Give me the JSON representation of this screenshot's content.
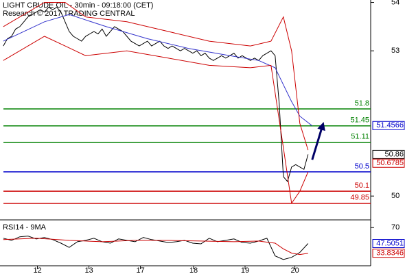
{
  "chart_data": [
    {
      "type": "line",
      "title": "LIGHT CRUDE OIL - 30min - 09:18:00 (CET)",
      "subtitle": "Research © 2017 TRADING CENTRAL",
      "xlim": [
        -0.8,
        89.2
      ],
      "xticks": [
        {
          "value": 8.3,
          "label": "12"
        },
        {
          "value": 20.8,
          "label": "13"
        },
        {
          "value": 33.3,
          "label": "17"
        },
        {
          "value": 46.2,
          "label": "18"
        },
        {
          "value": 58.7,
          "label": "19"
        },
        {
          "value": 70.8,
          "label": "20"
        }
      ],
      "ylim": [
        49.55,
        54.05
      ],
      "yticks": [
        50,
        53,
        54
      ],
      "series": [
        {
          "color": "#000000",
          "x": [
            0,
            1,
            2,
            3,
            4,
            5,
            6,
            7,
            8,
            9,
            10,
            11,
            12,
            13,
            14,
            15,
            16,
            17,
            18,
            19,
            20,
            21,
            22,
            23,
            24,
            25,
            26,
            27,
            28,
            29,
            30,
            31,
            32,
            33,
            34,
            35,
            36,
            37,
            38,
            39,
            40,
            41,
            42,
            43,
            44,
            45,
            46,
            47,
            48,
            49,
            50,
            51,
            52,
            53,
            54,
            55,
            56,
            57,
            58,
            59,
            60,
            61,
            62,
            63,
            64,
            65,
            66,
            67,
            68,
            69,
            70,
            71,
            72,
            73,
            74
          ],
          "values": [
            53.1,
            53.25,
            53.3,
            53.45,
            53.5,
            53.6,
            53.7,
            53.75,
            53.8,
            53.85,
            53.8,
            53.9,
            53.85,
            53.9,
            53.8,
            53.6,
            53.4,
            53.3,
            53.25,
            53.2,
            53.3,
            53.35,
            53.4,
            53.35,
            53.45,
            53.3,
            53.4,
            53.5,
            53.45,
            53.4,
            53.3,
            53.2,
            53.15,
            53.1,
            53.15,
            53.2,
            53.1,
            53.15,
            53.2,
            53.1,
            53.05,
            53.1,
            53.05,
            53.0,
            53.05,
            53.0,
            52.95,
            53.0,
            52.9,
            52.95,
            52.85,
            52.8,
            52.85,
            52.9,
            52.85,
            52.9,
            52.95,
            52.85,
            52.9,
            52.85,
            52.8,
            52.85,
            52.8,
            52.9,
            52.95,
            53.0,
            52.9,
            51.9,
            50.4,
            50.3,
            50.6,
            50.65,
            50.6,
            50.55,
            50.86
          ]
        },
        {
          "color": "#3333cc",
          "x": [
            0,
            10,
            16,
            25,
            35,
            45,
            55,
            62,
            66,
            68,
            70,
            72,
            75
          ],
          "values": [
            53.2,
            53.6,
            53.75,
            53.5,
            53.25,
            53.05,
            52.9,
            52.8,
            52.65,
            52.3,
            51.95,
            51.65,
            51.45
          ]
        },
        {
          "color": "#cc0000",
          "x": [
            0,
            10,
            15,
            20,
            30,
            40,
            50,
            60,
            65,
            68,
            70,
            72,
            74
          ],
          "values": [
            53.5,
            54.0,
            54.0,
            53.7,
            53.6,
            53.4,
            53.2,
            53.1,
            53.2,
            53.7,
            53.0,
            51.5,
            50.95
          ]
        },
        {
          "color": "#cc0000",
          "x": [
            0,
            10,
            15,
            20,
            30,
            40,
            50,
            60,
            65,
            68,
            70,
            72,
            74
          ],
          "values": [
            52.8,
            53.3,
            53.1,
            52.9,
            53.0,
            52.85,
            52.7,
            52.65,
            52.7,
            51.0,
            49.85,
            50.1,
            50.5
          ]
        }
      ],
      "levels": [
        {
          "value": 51.8,
          "color": "#008000"
        },
        {
          "value": 51.45,
          "color": "#008000"
        },
        {
          "value": 51.11,
          "color": "#008000"
        },
        {
          "value": 50.5,
          "color": "#0000cc"
        },
        {
          "value": 50.1,
          "color": "#cc0000"
        },
        {
          "value": 49.85,
          "color": "#cc0000"
        }
      ],
      "arrow": {
        "color": "#000066",
        "from": [
          75,
          50.75
        ],
        "to": [
          77.5,
          51.45
        ]
      },
      "price_tags": [
        {
          "value": 51.4566,
          "color": "#0000cc"
        },
        {
          "value": 50.86,
          "color": "#000000"
        },
        {
          "value": 50.6785,
          "color": "#cc0000"
        }
      ]
    },
    {
      "type": "line",
      "title": "RSI14 - 9MA",
      "ylim": [
        20,
        76
      ],
      "yticks": [
        70
      ],
      "series": [
        {
          "color": "#000000",
          "x": [
            0,
            2,
            4,
            6,
            8,
            10,
            12,
            14,
            16,
            18,
            20,
            22,
            24,
            26,
            28,
            30,
            32,
            34,
            36,
            38,
            40,
            42,
            44,
            46,
            48,
            50,
            52,
            54,
            56,
            58,
            60,
            62,
            64,
            66,
            68,
            70,
            72,
            74
          ],
          "values": [
            55,
            52,
            57,
            58,
            54,
            56,
            53,
            48,
            42,
            50,
            52,
            55,
            50,
            48,
            54,
            52,
            50,
            56,
            53,
            51,
            49,
            50,
            52,
            48,
            47,
            55,
            50,
            52,
            54,
            49,
            48,
            51,
            55,
            30,
            25,
            28,
            35,
            47.5
          ]
        },
        {
          "color": "#cc0000",
          "x": [
            0,
            8,
            16,
            24,
            32,
            40,
            48,
            56,
            62,
            66,
            68,
            70,
            72,
            74
          ],
          "values": [
            53,
            55,
            52,
            50,
            52,
            52,
            51,
            50,
            51,
            48,
            40,
            34,
            32,
            33.8
          ]
        }
      ],
      "price_tags": [
        {
          "value": 47.5051,
          "color": "#0000cc"
        },
        {
          "value": 33.8346,
          "color": "#cc0000"
        }
      ]
    }
  ]
}
